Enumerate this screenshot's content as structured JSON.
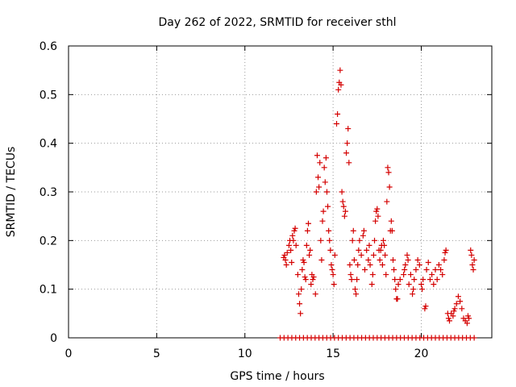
{
  "chart_data": {
    "type": "scatter",
    "title": "Day 262 of 2022, SRMTID for receiver sthl",
    "xlabel": "GPS time / hours",
    "ylabel": "SRMTID / TECUs",
    "xlim": [
      0,
      24
    ],
    "ylim": [
      0,
      0.6
    ],
    "xticks": [
      0,
      5,
      10,
      15,
      20
    ],
    "yticks": [
      0,
      0.1,
      0.2,
      0.3,
      0.4,
      0.5,
      0.6
    ],
    "xtick_labels": [
      "0",
      "5",
      "10",
      "15",
      "20"
    ],
    "ytick_labels": [
      "0",
      "0.1",
      "0.2",
      "0.3",
      "0.4",
      "0.5",
      "0.6"
    ],
    "grid": true,
    "marker": "+",
    "marker_color": "#d40000",
    "series": [
      {
        "name": "SRMTID",
        "points": [
          [
            12.2,
            0.165
          ],
          [
            12.25,
            0.17
          ],
          [
            12.3,
            0.16
          ],
          [
            12.35,
            0.15
          ],
          [
            12.4,
            0.175
          ],
          [
            12.5,
            0.19
          ],
          [
            12.55,
            0.2
          ],
          [
            12.6,
            0.18
          ],
          [
            12.65,
            0.155
          ],
          [
            12.7,
            0.21
          ],
          [
            12.75,
            0.2
          ],
          [
            12.8,
            0.22
          ],
          [
            12.85,
            0.225
          ],
          [
            12.9,
            0.19
          ],
          [
            13.0,
            0.13
          ],
          [
            13.05,
            0.09
          ],
          [
            13.1,
            0.07
          ],
          [
            13.15,
            0.05
          ],
          [
            13.2,
            0.1
          ],
          [
            13.25,
            0.14
          ],
          [
            13.3,
            0.16
          ],
          [
            13.35,
            0.155
          ],
          [
            13.4,
            0.125
          ],
          [
            13.45,
            0.12
          ],
          [
            13.5,
            0.19
          ],
          [
            13.55,
            0.22
          ],
          [
            13.6,
            0.235
          ],
          [
            13.65,
            0.17
          ],
          [
            13.7,
            0.18
          ],
          [
            13.75,
            0.11
          ],
          [
            13.8,
            0.13
          ],
          [
            13.85,
            0.12
          ],
          [
            13.9,
            0.125
          ],
          [
            14.0,
            0.09
          ],
          [
            14.05,
            0.3
          ],
          [
            14.1,
            0.375
          ],
          [
            14.15,
            0.33
          ],
          [
            14.2,
            0.31
          ],
          [
            14.25,
            0.36
          ],
          [
            14.3,
            0.2
          ],
          [
            14.35,
            0.16
          ],
          [
            14.4,
            0.24
          ],
          [
            14.45,
            0.26
          ],
          [
            14.5,
            0.35
          ],
          [
            14.55,
            0.32
          ],
          [
            14.6,
            0.37
          ],
          [
            14.65,
            0.3
          ],
          [
            14.7,
            0.27
          ],
          [
            14.75,
            0.22
          ],
          [
            14.8,
            0.2
          ],
          [
            14.85,
            0.18
          ],
          [
            14.9,
            0.15
          ],
          [
            14.95,
            0.14
          ],
          [
            15.0,
            0.13
          ],
          [
            15.05,
            0.11
          ],
          [
            15.1,
            0.17
          ],
          [
            15.2,
            0.44
          ],
          [
            15.25,
            0.46
          ],
          [
            15.3,
            0.51
          ],
          [
            15.35,
            0.525
          ],
          [
            15.4,
            0.55
          ],
          [
            15.45,
            0.52
          ],
          [
            15.5,
            0.3
          ],
          [
            15.55,
            0.28
          ],
          [
            15.6,
            0.27
          ],
          [
            15.65,
            0.25
          ],
          [
            15.7,
            0.26
          ],
          [
            15.75,
            0.38
          ],
          [
            15.8,
            0.4
          ],
          [
            15.85,
            0.43
          ],
          [
            15.9,
            0.36
          ],
          [
            15.95,
            0.15
          ],
          [
            16.0,
            0.13
          ],
          [
            16.05,
            0.12
          ],
          [
            16.1,
            0.2
          ],
          [
            16.15,
            0.22
          ],
          [
            16.2,
            0.16
          ],
          [
            16.25,
            0.1
          ],
          [
            16.3,
            0.09
          ],
          [
            16.35,
            0.12
          ],
          [
            16.4,
            0.15
          ],
          [
            16.45,
            0.18
          ],
          [
            16.5,
            0.2
          ],
          [
            16.6,
            0.17
          ],
          [
            16.7,
            0.21
          ],
          [
            16.75,
            0.22
          ],
          [
            16.8,
            0.14
          ],
          [
            16.9,
            0.18
          ],
          [
            17.0,
            0.16
          ],
          [
            17.05,
            0.19
          ],
          [
            17.1,
            0.15
          ],
          [
            17.2,
            0.11
          ],
          [
            17.25,
            0.13
          ],
          [
            17.3,
            0.17
          ],
          [
            17.35,
            0.2
          ],
          [
            17.4,
            0.24
          ],
          [
            17.45,
            0.26
          ],
          [
            17.5,
            0.265
          ],
          [
            17.55,
            0.25
          ],
          [
            17.6,
            0.18
          ],
          [
            17.65,
            0.16
          ],
          [
            17.7,
            0.18
          ],
          [
            17.75,
            0.19
          ],
          [
            17.8,
            0.15
          ],
          [
            17.85,
            0.2
          ],
          [
            17.9,
            0.19
          ],
          [
            17.95,
            0.17
          ],
          [
            18.0,
            0.13
          ],
          [
            18.05,
            0.28
          ],
          [
            18.1,
            0.35
          ],
          [
            18.15,
            0.34
          ],
          [
            18.2,
            0.31
          ],
          [
            18.25,
            0.22
          ],
          [
            18.3,
            0.24
          ],
          [
            18.35,
            0.22
          ],
          [
            18.4,
            0.16
          ],
          [
            18.45,
            0.14
          ],
          [
            18.5,
            0.12
          ],
          [
            18.55,
            0.1
          ],
          [
            18.6,
            0.08
          ],
          [
            18.65,
            0.08
          ],
          [
            18.7,
            0.11
          ],
          [
            18.8,
            0.12
          ],
          [
            19.0,
            0.13
          ],
          [
            19.05,
            0.14
          ],
          [
            19.1,
            0.15
          ],
          [
            19.2,
            0.17
          ],
          [
            19.25,
            0.16
          ],
          [
            19.3,
            0.11
          ],
          [
            19.4,
            0.13
          ],
          [
            19.5,
            0.09
          ],
          [
            19.55,
            0.1
          ],
          [
            19.6,
            0.12
          ],
          [
            19.7,
            0.14
          ],
          [
            19.8,
            0.16
          ],
          [
            19.9,
            0.15
          ],
          [
            20.0,
            0.11
          ],
          [
            20.05,
            0.1
          ],
          [
            20.1,
            0.12
          ],
          [
            20.2,
            0.06
          ],
          [
            20.25,
            0.065
          ],
          [
            20.3,
            0.14
          ],
          [
            20.4,
            0.155
          ],
          [
            20.5,
            0.12
          ],
          [
            20.6,
            0.13
          ],
          [
            20.7,
            0.11
          ],
          [
            20.8,
            0.14
          ],
          [
            20.9,
            0.12
          ],
          [
            21.0,
            0.15
          ],
          [
            21.1,
            0.14
          ],
          [
            21.2,
            0.13
          ],
          [
            21.3,
            0.16
          ],
          [
            21.35,
            0.175
          ],
          [
            21.4,
            0.18
          ],
          [
            21.5,
            0.05
          ],
          [
            21.55,
            0.04
          ],
          [
            21.6,
            0.035
          ],
          [
            21.7,
            0.05
          ],
          [
            21.8,
            0.045
          ],
          [
            21.85,
            0.055
          ],
          [
            21.9,
            0.06
          ],
          [
            22.0,
            0.07
          ],
          [
            22.1,
            0.085
          ],
          [
            22.2,
            0.075
          ],
          [
            22.3,
            0.06
          ],
          [
            22.4,
            0.04
          ],
          [
            22.5,
            0.035
          ],
          [
            22.6,
            0.03
          ],
          [
            22.65,
            0.045
          ],
          [
            22.7,
            0.04
          ],
          [
            22.8,
            0.18
          ],
          [
            22.85,
            0.17
          ],
          [
            22.9,
            0.15
          ],
          [
            22.95,
            0.14
          ],
          [
            23.0,
            0.16
          ]
        ],
        "zero_band": {
          "x_start": 12.0,
          "x_end": 23.0,
          "x_step": 0.22,
          "y": 0
        }
      }
    ]
  }
}
